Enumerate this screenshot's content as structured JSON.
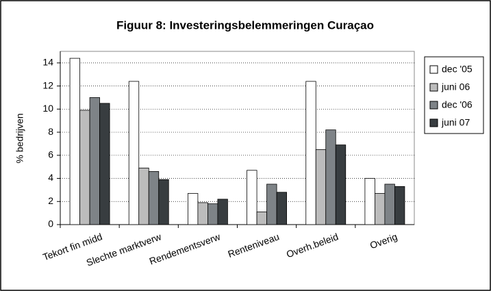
{
  "chart_data": {
    "type": "bar",
    "title": "Figuur 8: Investeringsbelemmeringen Curaçao",
    "y_label": "% bedrijven",
    "categories": [
      "Tekort fin midd",
      "Slechte marktverw",
      "Rendementsverw",
      "Renteniveau",
      "Overh.beleid",
      "Overig"
    ],
    "series": [
      {
        "name": "dec '05",
        "color": "#ffffff",
        "values": [
          14.4,
          12.4,
          2.7,
          4.7,
          12.4,
          4.0
        ]
      },
      {
        "name": "juni 06",
        "color": "#bcbcbc",
        "values": [
          9.9,
          4.9,
          1.9,
          1.1,
          6.5,
          2.7
        ]
      },
      {
        "name": "dec '06",
        "color": "#7e8387",
        "values": [
          11.0,
          4.6,
          1.8,
          3.5,
          8.2,
          3.5
        ]
      },
      {
        "name": "juni 07",
        "color": "#383d40",
        "values": [
          10.5,
          3.9,
          2.2,
          2.8,
          6.9,
          3.3
        ]
      }
    ],
    "ylim": [
      0,
      15
    ],
    "yticks": [
      0,
      2,
      4,
      6,
      8,
      10,
      12,
      14
    ],
    "grid": true,
    "legend": "right"
  }
}
